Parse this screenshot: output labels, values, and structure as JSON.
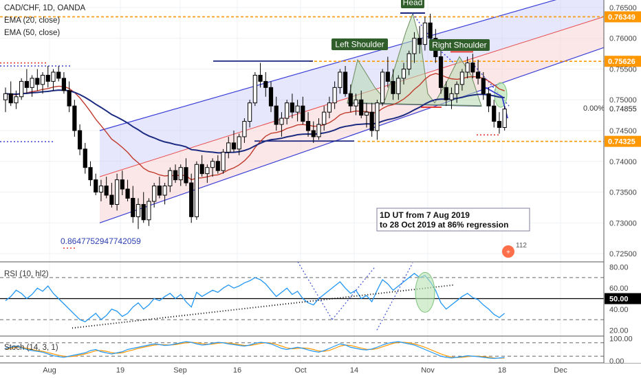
{
  "header": {
    "symbol_line": "CAD/CHF, 1D, OANDA",
    "ema20_label": "EMA (20, close)",
    "ema50_label": "EMA (50, close)"
  },
  "colors": {
    "candle": "#000000",
    "ema20": "#c0392b",
    "ema50": "#1a2a80",
    "channel_line": "#3a3fd6",
    "channel_mid": "#e84a4a",
    "channel_upper_fill": "#c8c8f8",
    "channel_lower_fill": "#f8cfcf",
    "orange_level": "#ff9800",
    "neckline": "#1a237e",
    "pattern_fill": "#b7d9b0",
    "rsi_line": "#2196f3",
    "stoch_k": "#2196f3",
    "stoch_d": "#ff9800",
    "label_bg": "#2f5e2a"
  },
  "chart_data": {
    "type": "candlestick",
    "price_axis": {
      "ticks": [
        "0.76500",
        "0.76000",
        "0.75500",
        "0.75000",
        "0.74500",
        "0.74000",
        "0.73500",
        "0.73000",
        "0.72500"
      ],
      "range": [
        0.724,
        0.766
      ]
    },
    "x_axis": {
      "ticks": [
        "Aug",
        "19",
        "Sep",
        "16",
        "Oct",
        "14",
        "Nov",
        "18",
        "Dec"
      ]
    },
    "price_labels": [
      {
        "text": "0.76349",
        "value": 0.76349
      },
      {
        "text": "0.75626",
        "value": 0.75626
      },
      {
        "text": "0.74325",
        "value": 0.74325
      }
    ],
    "current_price": {
      "text": "0.74855",
      "value": 0.74855
    },
    "percent_label": "0.00%",
    "pattern_labels": {
      "head": "Head",
      "left_shoulder": "Left Shoulder",
      "right_shoulder": "Right Shoulder"
    },
    "annotation": {
      "line1": "1D UT from 7 Aug 2019",
      "line2": "to 28 Oct 2019 at 86% regression"
    },
    "fib_text": "0.8647752947742059",
    "alerts_count": "112",
    "candles": [
      [
        0.75,
        0.752,
        0.748,
        0.751
      ],
      [
        0.751,
        0.753,
        0.749,
        0.7495
      ],
      [
        0.7495,
        0.7515,
        0.7485,
        0.7505
      ],
      [
        0.7505,
        0.7535,
        0.75,
        0.753
      ],
      [
        0.753,
        0.755,
        0.751,
        0.752
      ],
      [
        0.752,
        0.754,
        0.7505,
        0.7535
      ],
      [
        0.7535,
        0.755,
        0.7515,
        0.7525
      ],
      [
        0.7525,
        0.7545,
        0.751,
        0.754
      ],
      [
        0.754,
        0.7555,
        0.752,
        0.753
      ],
      [
        0.753,
        0.755,
        0.7515,
        0.7545
      ],
      [
        0.7545,
        0.7555,
        0.753,
        0.7535
      ],
      [
        0.7535,
        0.7545,
        0.751,
        0.7515
      ],
      [
        0.7515,
        0.753,
        0.748,
        0.749
      ],
      [
        0.749,
        0.75,
        0.744,
        0.745
      ],
      [
        0.745,
        0.746,
        0.741,
        0.742
      ],
      [
        0.742,
        0.743,
        0.738,
        0.739
      ],
      [
        0.739,
        0.74,
        0.736,
        0.737
      ],
      [
        0.737,
        0.738,
        0.7345,
        0.735
      ],
      [
        0.735,
        0.737,
        0.7335,
        0.736
      ],
      [
        0.736,
        0.7375,
        0.734,
        0.7345
      ],
      [
        0.7345,
        0.7365,
        0.7325,
        0.733
      ],
      [
        0.733,
        0.738,
        0.732,
        0.737
      ],
      [
        0.737,
        0.7385,
        0.7345,
        0.7355
      ],
      [
        0.7355,
        0.737,
        0.7335,
        0.734
      ],
      [
        0.734,
        0.736,
        0.73,
        0.731
      ],
      [
        0.731,
        0.734,
        0.729,
        0.733
      ],
      [
        0.733,
        0.735,
        0.73,
        0.7305
      ],
      [
        0.7305,
        0.734,
        0.7295,
        0.7335
      ],
      [
        0.7335,
        0.7365,
        0.7325,
        0.736
      ],
      [
        0.736,
        0.7375,
        0.734,
        0.7345
      ],
      [
        0.7345,
        0.7365,
        0.733,
        0.736
      ],
      [
        0.736,
        0.739,
        0.735,
        0.7385
      ],
      [
        0.7385,
        0.7395,
        0.7365,
        0.737
      ],
      [
        0.737,
        0.7395,
        0.736,
        0.739
      ],
      [
        0.739,
        0.7405,
        0.736,
        0.7365
      ],
      [
        0.7365,
        0.738,
        0.73,
        0.731
      ],
      [
        0.731,
        0.74,
        0.7305,
        0.7395
      ],
      [
        0.7395,
        0.741,
        0.7375,
        0.738
      ],
      [
        0.738,
        0.7395,
        0.7365,
        0.739
      ],
      [
        0.739,
        0.7405,
        0.7375,
        0.74
      ],
      [
        0.74,
        0.741,
        0.738,
        0.7385
      ],
      [
        0.7385,
        0.742,
        0.738,
        0.7415
      ],
      [
        0.7415,
        0.744,
        0.7405,
        0.743
      ],
      [
        0.743,
        0.745,
        0.7415,
        0.742
      ],
      [
        0.742,
        0.7445,
        0.741,
        0.744
      ],
      [
        0.744,
        0.747,
        0.743,
        0.7465
      ],
      [
        0.7465,
        0.75,
        0.7455,
        0.7495
      ],
      [
        0.7495,
        0.7545,
        0.749,
        0.754
      ],
      [
        0.754,
        0.756,
        0.752,
        0.753
      ],
      [
        0.753,
        0.7545,
        0.7505,
        0.752
      ],
      [
        0.752,
        0.753,
        0.748,
        0.749
      ],
      [
        0.749,
        0.7505,
        0.745,
        0.746
      ],
      [
        0.746,
        0.748,
        0.744,
        0.747
      ],
      [
        0.747,
        0.75,
        0.746,
        0.7495
      ],
      [
        0.7495,
        0.751,
        0.747,
        0.748
      ],
      [
        0.748,
        0.75,
        0.7465,
        0.749
      ],
      [
        0.749,
        0.7505,
        0.746,
        0.7465
      ],
      [
        0.7465,
        0.748,
        0.744,
        0.745
      ],
      [
        0.745,
        0.7465,
        0.743,
        0.744
      ],
      [
        0.744,
        0.747,
        0.7435,
        0.746
      ],
      [
        0.746,
        0.749,
        0.745,
        0.748
      ],
      [
        0.748,
        0.7505,
        0.747,
        0.7495
      ],
      [
        0.7495,
        0.753,
        0.7485,
        0.752
      ],
      [
        0.752,
        0.755,
        0.751,
        0.7545
      ],
      [
        0.7545,
        0.7555,
        0.7505,
        0.751
      ],
      [
        0.751,
        0.7525,
        0.748,
        0.749
      ],
      [
        0.749,
        0.751,
        0.7475,
        0.75
      ],
      [
        0.75,
        0.7515,
        0.747,
        0.7475
      ],
      [
        0.7475,
        0.7495,
        0.7455,
        0.748
      ],
      [
        0.748,
        0.7495,
        0.744,
        0.745
      ],
      [
        0.745,
        0.75,
        0.7435,
        0.7495
      ],
      [
        0.7495,
        0.755,
        0.749,
        0.7545
      ],
      [
        0.7545,
        0.757,
        0.752,
        0.753
      ],
      [
        0.753,
        0.755,
        0.75,
        0.751
      ],
      [
        0.751,
        0.754,
        0.75,
        0.7535
      ],
      [
        0.7535,
        0.756,
        0.7525,
        0.755
      ],
      [
        0.755,
        0.758,
        0.754,
        0.7575
      ],
      [
        0.7575,
        0.761,
        0.756,
        0.76
      ],
      [
        0.76,
        0.762,
        0.7575,
        0.759
      ],
      [
        0.759,
        0.7635,
        0.758,
        0.7625
      ],
      [
        0.7625,
        0.764,
        0.759,
        0.76
      ],
      [
        0.76,
        0.7615,
        0.756,
        0.757
      ],
      [
        0.757,
        0.758,
        0.751,
        0.752
      ],
      [
        0.752,
        0.753,
        0.749,
        0.75
      ],
      [
        0.75,
        0.752,
        0.7485,
        0.751
      ],
      [
        0.751,
        0.753,
        0.7495,
        0.7525
      ],
      [
        0.7525,
        0.755,
        0.7515,
        0.7545
      ],
      [
        0.7545,
        0.757,
        0.7535,
        0.756
      ],
      [
        0.756,
        0.7575,
        0.7535,
        0.7545
      ],
      [
        0.7545,
        0.7565,
        0.7525,
        0.7535
      ],
      [
        0.7535,
        0.7545,
        0.75,
        0.751
      ],
      [
        0.751,
        0.752,
        0.748,
        0.749
      ],
      [
        0.749,
        0.75,
        0.7455,
        0.7465
      ],
      [
        0.7465,
        0.748,
        0.7445,
        0.7455
      ],
      [
        0.7455,
        0.749,
        0.745,
        0.7485
      ]
    ],
    "rsi": {
      "label": "RSI (10, hl2)",
      "ticks": [
        "80.00",
        "60.00",
        "40.00",
        "20.00"
      ],
      "current": "50.00",
      "range": [
        15,
        85
      ],
      "levels": [
        70,
        30
      ],
      "values": [
        48,
        52,
        58,
        55,
        50,
        54,
        60,
        57,
        62,
        55,
        50,
        45,
        40,
        35,
        30,
        28,
        32,
        36,
        30,
        34,
        40,
        38,
        33,
        36,
        42,
        46,
        40,
        44,
        50,
        48,
        52,
        55,
        50,
        54,
        47,
        42,
        56,
        52,
        55,
        58,
        56,
        60,
        63,
        60,
        62,
        65,
        67,
        70,
        68,
        64,
        58,
        52,
        56,
        60,
        54,
        57,
        50,
        46,
        44,
        50,
        54,
        58,
        62,
        66,
        60,
        55,
        58,
        50,
        53,
        47,
        58,
        68,
        64,
        58,
        62,
        66,
        70,
        74,
        70,
        72,
        66,
        58,
        46,
        40,
        44,
        48,
        52,
        55,
        51,
        49,
        44,
        40,
        35,
        32,
        36
      ]
    },
    "stoch": {
      "label": "Stoch (14, 3, 1)",
      "ticks": [
        "100.00",
        "0.00"
      ],
      "range": [
        -10,
        110
      ],
      "levels": [
        80,
        20
      ],
      "k": [
        55,
        60,
        65,
        58,
        50,
        45,
        42,
        38,
        30,
        22,
        18,
        15,
        20,
        25,
        30,
        35,
        45,
        50,
        40,
        35,
        30,
        35,
        40,
        50,
        55,
        60,
        65,
        70,
        75,
        72,
        68,
        70,
        75,
        80,
        85,
        82,
        75,
        70,
        72,
        78,
        82,
        80,
        75,
        72,
        68,
        65,
        70,
        78,
        82,
        80,
        75,
        65,
        55,
        50,
        55,
        60,
        55,
        48,
        42,
        38,
        45,
        55,
        65,
        75,
        70,
        60,
        55,
        50,
        48,
        52,
        60,
        70,
        78,
        82,
        85,
        80,
        75,
        70,
        60,
        50,
        40,
        30,
        20,
        15,
        12,
        15,
        18,
        22,
        20,
        18,
        15,
        12,
        10,
        12,
        14
      ],
      "d": [
        50,
        55,
        60,
        60,
        55,
        50,
        45,
        42,
        36,
        30,
        24,
        20,
        18,
        20,
        25,
        30,
        37,
        44,
        45,
        42,
        36,
        33,
        35,
        42,
        48,
        55,
        60,
        65,
        70,
        72,
        71,
        70,
        72,
        76,
        80,
        82,
        80,
        76,
        73,
        74,
        78,
        80,
        79,
        76,
        72,
        68,
        68,
        72,
        77,
        80,
        79,
        73,
        65,
        57,
        53,
        55,
        57,
        55,
        50,
        43,
        42,
        46,
        55,
        65,
        70,
        68,
        62,
        56,
        51,
        50,
        54,
        62,
        70,
        77,
        82,
        82,
        80,
        75,
        68,
        60,
        50,
        40,
        30,
        22,
        16,
        14,
        15,
        18,
        20,
        20,
        18,
        15,
        12,
        11,
        12
      ]
    }
  }
}
